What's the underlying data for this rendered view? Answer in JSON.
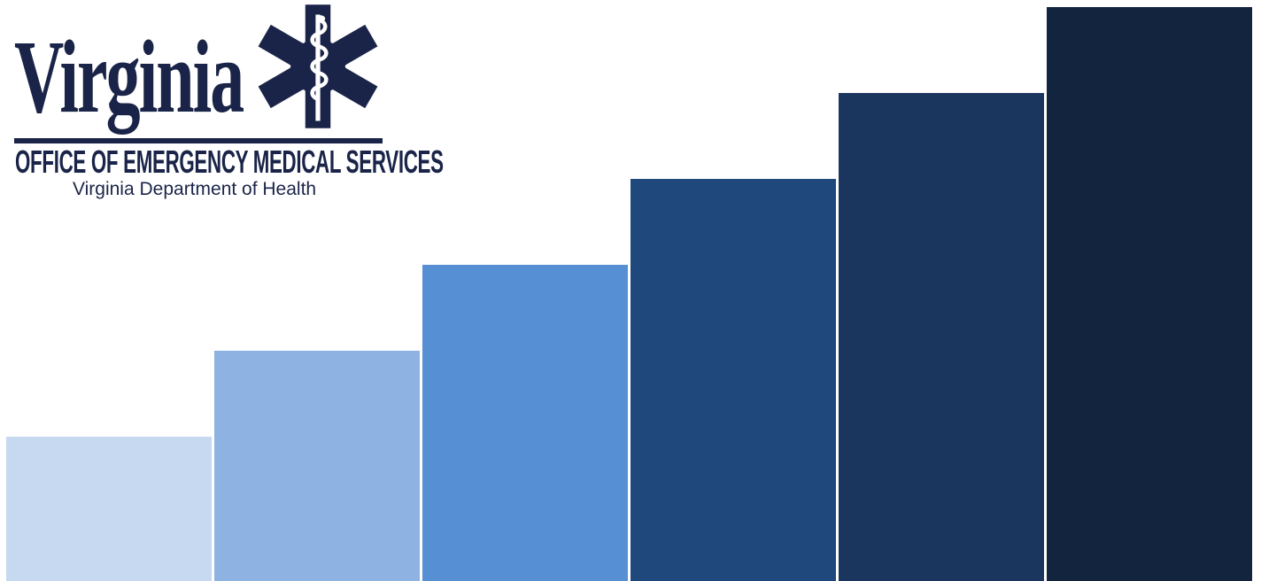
{
  "logo": {
    "wordmark": "Virginia",
    "office_line": "OFFICE OF EMERGENCY MEDICAL SERVICES",
    "subtitle": "Virginia Department of Health",
    "color": "#1a2448"
  },
  "steps": {
    "count": 6,
    "colors": [
      "#c6d9f0",
      "#8eb3e2",
      "#568fd3",
      "#1f497c",
      "#1a365e",
      "#13243f"
    ]
  }
}
